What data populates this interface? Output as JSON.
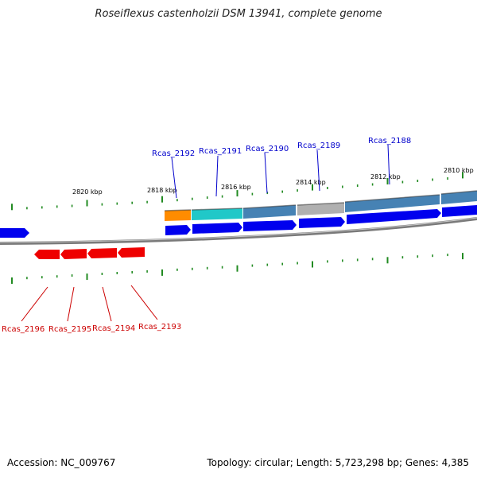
{
  "title": "Roseiflexus castenholzii DSM 13941, complete genome",
  "footer": {
    "accession": "Accession: NC_009767",
    "summary": "Topology: circular; Length: 5,723,298 bp; Genes: 4,385"
  },
  "colors": {
    "backbone": "#808080",
    "forward_gene": "#0000ee",
    "reverse_gene": "#ee0000",
    "tick": "#228b22",
    "forward_label": "#0000cc",
    "reverse_label": "#cc0000"
  },
  "kbp_labels": [
    {
      "text": "2820 kbp"
    },
    {
      "text": "2818 kbp"
    },
    {
      "text": "2816 kbp"
    },
    {
      "text": "2814 kbp"
    },
    {
      "text": "2812 kbp"
    },
    {
      "text": "2810 kbp"
    }
  ],
  "forward_labels": [
    {
      "text": "Rcas_2192"
    },
    {
      "text": "Rcas_2191"
    },
    {
      "text": "Rcas_2190"
    },
    {
      "text": "Rcas_2189"
    },
    {
      "text": "Rcas_2188"
    }
  ],
  "reverse_labels": [
    {
      "text": "Rcas_2196"
    },
    {
      "text": "Rcas_2195"
    },
    {
      "text": "Rcas_2194"
    },
    {
      "text": "Rcas_2193"
    }
  ],
  "feature_colors": [
    "#ff8c00",
    "#20c8c8",
    "#4682b4",
    "#b0b0b0",
    "#4682b4",
    "#4682b4"
  ]
}
